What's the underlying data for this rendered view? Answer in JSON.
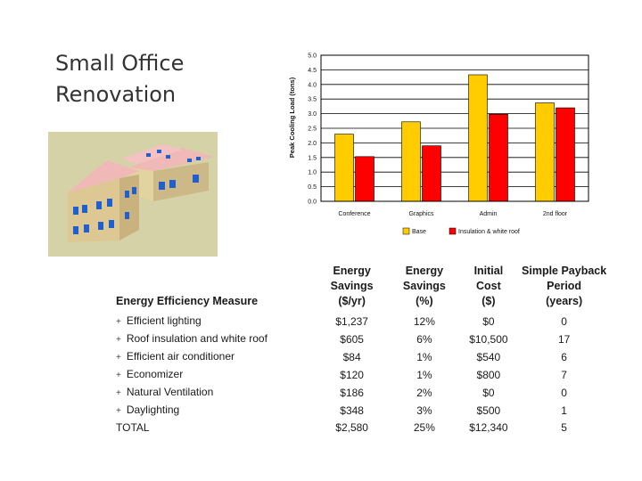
{
  "slide": {
    "title_line1": "Small Office",
    "title_line2": "Renovation"
  },
  "colors": {
    "base": "#ffcc00",
    "improved": "#ff0000",
    "grid": "#000000",
    "roof": "#f1b8b8",
    "wall": "#d9c690",
    "window": "#1f5fd0",
    "ground": "#d4d2a6"
  },
  "chart_data": {
    "type": "bar",
    "title": "",
    "ylabel": "Peak Cooling Load (tons)",
    "xlabel": "",
    "ylim": [
      0,
      5
    ],
    "yticks": [
      "0.0",
      "0.5",
      "1.0",
      "1.5",
      "2.0",
      "2.5",
      "3.0",
      "3.5",
      "4.0",
      "4.5",
      "5.0"
    ],
    "categories": [
      "Conference",
      "Graphics",
      "Admin",
      "2nd floor"
    ],
    "series": [
      {
        "name": "Base",
        "color": "#ffcc00",
        "values": [
          2.3,
          2.72,
          4.33,
          3.37
        ]
      },
      {
        "name": "Insulation & white roof",
        "color": "#ff0000",
        "values": [
          1.53,
          1.9,
          2.98,
          3.2
        ]
      }
    ],
    "legend": "bottom-center",
    "grid": true
  },
  "table": {
    "headers": {
      "measure": "Energy Efficiency Measure",
      "savings_dollar": "Energy Savings",
      "savings_dollar_unit": "($/yr)",
      "savings_pct": "Energy Savings",
      "savings_pct_unit": "(%)",
      "cost": "Initial Cost",
      "cost_unit": "($)",
      "payback": "Simple Payback Period",
      "payback_unit": "(years)"
    },
    "rows": [
      {
        "prefix": "+",
        "measure": "Efficient lighting",
        "savings": "$1,237",
        "pct": "12%",
        "cost": "$0",
        "payback": "0"
      },
      {
        "prefix": "+",
        "measure": "Roof insulation and white roof",
        "savings": "$605",
        "pct": "6%",
        "cost": "$10,500",
        "payback": "17"
      },
      {
        "prefix": "+",
        "measure": "Efficient air conditioner",
        "savings": "$84",
        "pct": "1%",
        "cost": "$540",
        "payback": "6"
      },
      {
        "prefix": "+",
        "measure": "Economizer",
        "savings": "$120",
        "pct": "1%",
        "cost": "$800",
        "payback": "7"
      },
      {
        "prefix": "+",
        "measure": "Natural Ventilation",
        "savings": "$186",
        "pct": "2%",
        "cost": "$0",
        "payback": "0"
      },
      {
        "prefix": "+",
        "measure": "Daylighting",
        "savings": "$348",
        "pct": "3%",
        "cost": "$500",
        "payback": "1"
      },
      {
        "prefix": "",
        "measure": "TOTAL",
        "savings": "$2,580",
        "pct": "25%",
        "cost": "$12,340",
        "payback": "5"
      }
    ]
  }
}
